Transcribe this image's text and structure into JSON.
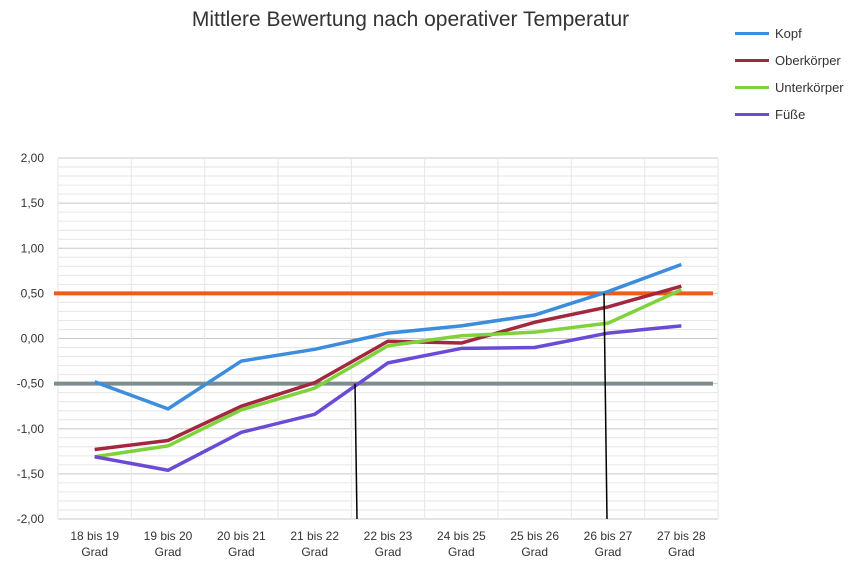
{
  "chart_data": {
    "type": "line",
    "title": "Mittlere Bewertung nach operativer Temperatur",
    "categories": [
      "18 bis 19 Grad",
      "19 bis 20 Grad",
      "20 bis 21 Grad",
      "21 bis 22 Grad",
      "22 bis 23 Grad",
      "24 bis 25 Grad",
      "25 bis 26 Grad",
      "26 bis 27 Grad",
      "27 bis 28 Grad"
    ],
    "ylim": [
      -2,
      2
    ],
    "yticks": [
      "2,00",
      "1,50",
      "1,00",
      "0,50",
      "0,00",
      "-0,50",
      "-1,00",
      "-1,50",
      "-2,00"
    ],
    "grid": true,
    "legend_position": "top-right",
    "series": [
      {
        "name": "Kopf",
        "color": "#3c8ddc",
        "values": [
          -0.48,
          -0.78,
          -0.25,
          -0.12,
          0.06,
          0.14,
          0.26,
          0.52,
          0.82
        ]
      },
      {
        "name": "Oberkörper",
        "color": "#a3283f",
        "values": [
          -1.23,
          -1.13,
          -0.75,
          -0.49,
          -0.03,
          -0.05,
          0.18,
          0.35,
          0.58
        ]
      },
      {
        "name": "Unterkörper",
        "color": "#7fd33a",
        "values": [
          -1.31,
          -1.19,
          -0.79,
          -0.55,
          -0.08,
          0.03,
          0.07,
          0.17,
          0.54
        ]
      },
      {
        "name": "Füße",
        "color": "#6a4bd6",
        "values": [
          -1.31,
          -1.46,
          -1.04,
          -0.84,
          -0.27,
          -0.11,
          -0.1,
          0.06,
          0.14
        ]
      }
    ],
    "reference_lines": [
      {
        "value": 0.5,
        "color": "#f05a1a"
      },
      {
        "value": -0.5,
        "color": "#7f8c8d"
      }
    ],
    "vertical_markers": [
      {
        "x_between": [
          "21 bis 22 Grad",
          "22 bis 23 Grad"
        ],
        "y": -0.5
      },
      {
        "x_between": [
          "25 bis 26 Grad",
          "26 bis 27 Grad"
        ],
        "y": 0.5
      }
    ]
  }
}
